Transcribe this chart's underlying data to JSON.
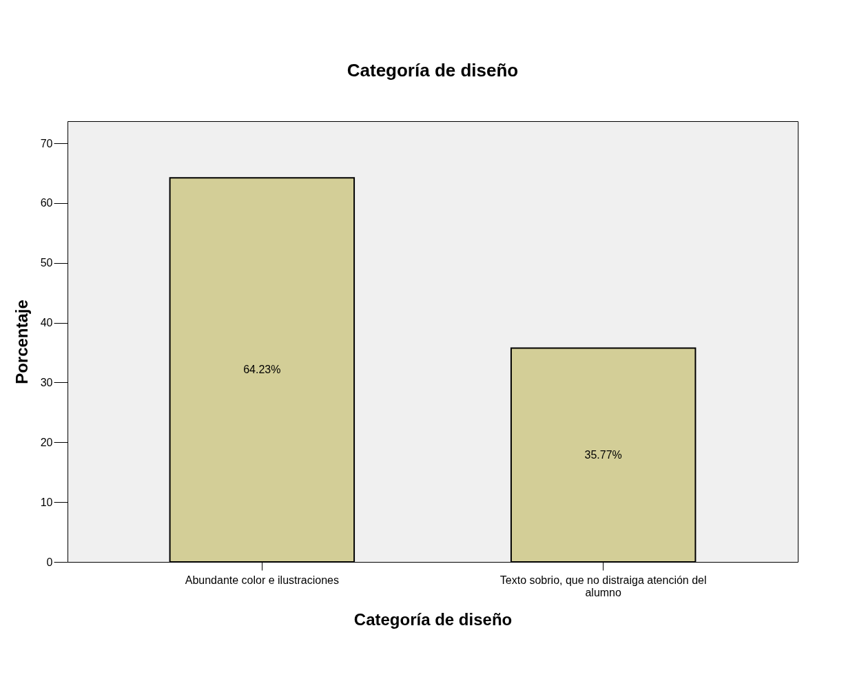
{
  "chart_data": {
    "type": "bar",
    "title": "Categoría de diseño",
    "xlabel": "Categoría de diseño",
    "ylabel": "Porcentaje",
    "categories": [
      "Abundante color e ilustraciones",
      "Texto sobrio,  que no distraiga atención del alumno"
    ],
    "values": [
      64.23,
      35.77
    ],
    "value_labels": [
      "64.23%",
      "35.77%"
    ],
    "color": "#d3ce97",
    "ylim": [
      0,
      73.7
    ],
    "yticks": [
      0,
      10,
      20,
      30,
      40,
      50,
      60,
      70
    ],
    "grid": false
  }
}
